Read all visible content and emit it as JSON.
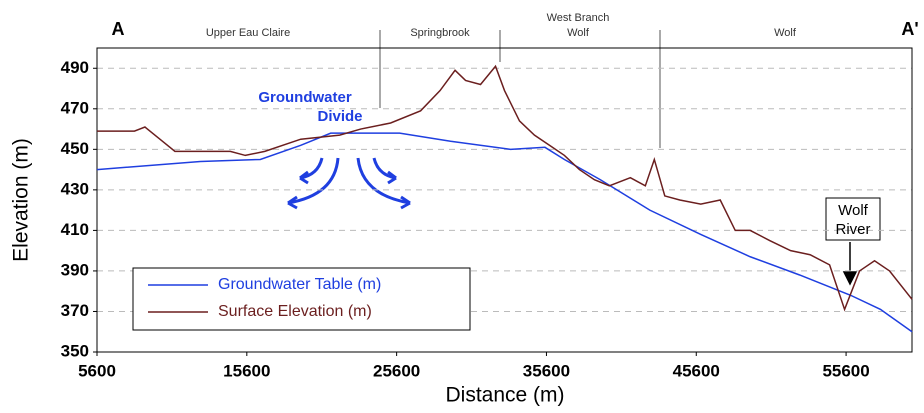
{
  "chart_data": {
    "type": "line",
    "xlabel": "Distance (m)",
    "ylabel": "Elevation (m)",
    "xlim": [
      5600,
      60000
    ],
    "ylim": [
      350,
      500
    ],
    "xticks": [
      5600,
      15600,
      25600,
      35600,
      45600,
      55600
    ],
    "yticks": [
      350,
      370,
      390,
      410,
      430,
      450,
      470,
      490
    ],
    "grid": true,
    "legend": "lower left",
    "end_labels": [
      "A",
      "A'"
    ],
    "section_labels": [
      [
        "Upper Eau Claire"
      ],
      [
        "Springbrook"
      ],
      [
        "West Branch",
        "Wolf"
      ],
      [
        "Wolf"
      ]
    ],
    "annotations": [
      [
        "Groundwater",
        "Divide"
      ],
      [
        "Wolf",
        "River"
      ]
    ],
    "series": [
      {
        "name": "Groundwater Table (m)",
        "color": "#1f3fe0",
        "x": [
          5600,
          12500,
          16500,
          19200,
          21200,
          25800,
          29200,
          33200,
          35500,
          36800,
          39200,
          42500,
          45900,
          49200,
          52500,
          55900,
          57900,
          60000
        ],
        "values": [
          440,
          444,
          445,
          452,
          458,
          458,
          454,
          450,
          451,
          445,
          435,
          420,
          408,
          397,
          388,
          378,
          371,
          360
        ]
      },
      {
        "name": "Surface Elevation (m)",
        "color": "#6b1f1f",
        "x": [
          5600,
          8100,
          8800,
          9800,
          10800,
          14500,
          15500,
          16800,
          19200,
          21800,
          23200,
          25200,
          27200,
          28500,
          29500,
          30200,
          31200,
          32200,
          32800,
          33800,
          34800,
          35800,
          36800,
          37800,
          38800,
          39800,
          41200,
          42200,
          42800,
          43500,
          44500,
          45900,
          47200,
          48200,
          49200,
          50500,
          51900,
          53200,
          54500,
          55500,
          56500,
          57500,
          58500,
          60000
        ],
        "values": [
          459,
          459,
          461,
          455,
          449,
          449,
          447,
          449,
          455,
          457,
          460,
          463,
          469,
          479,
          489,
          484,
          482,
          491,
          479,
          464,
          457,
          452,
          447,
          440,
          435,
          432,
          436,
          432,
          445,
          427,
          425,
          423,
          425,
          410,
          410,
          405,
          400,
          398,
          393,
          371,
          390,
          395,
          390,
          376
        ]
      }
    ]
  }
}
